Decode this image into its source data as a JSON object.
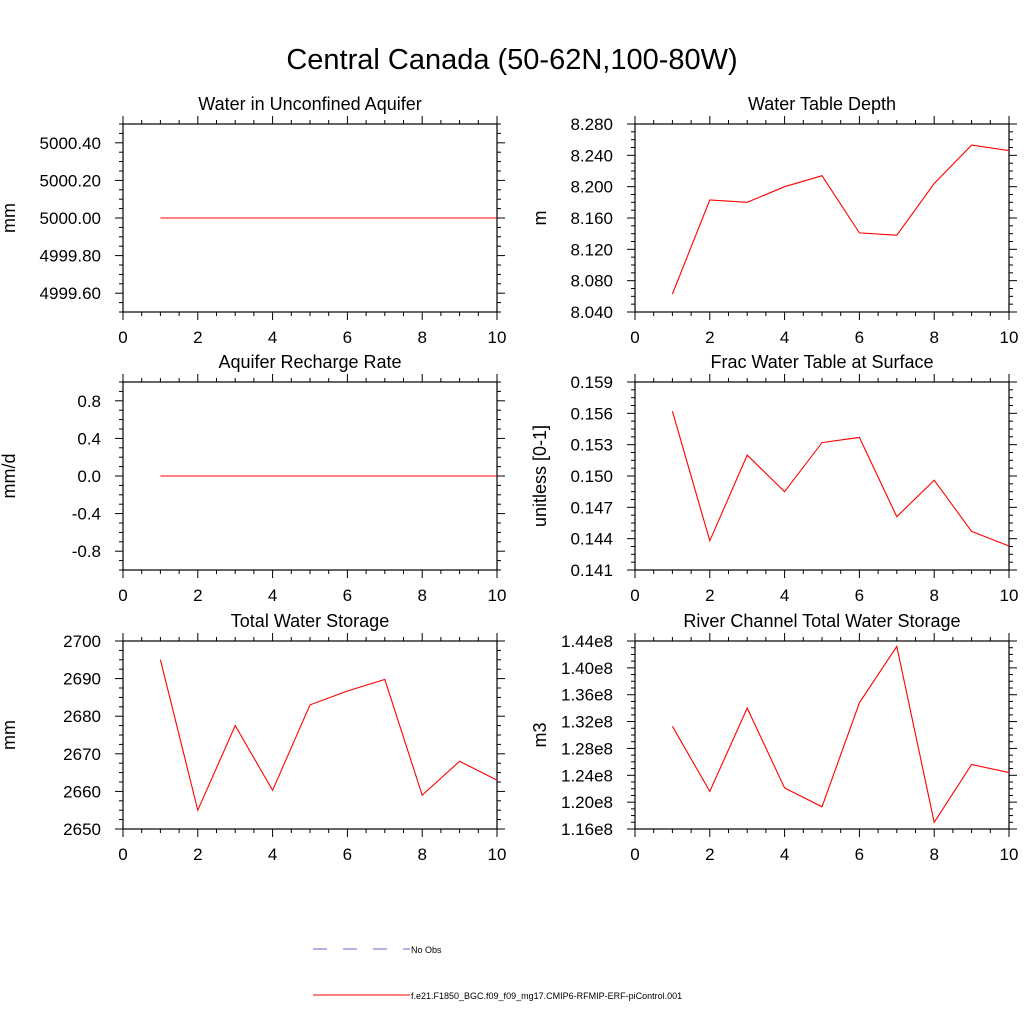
{
  "page": {
    "title": "Central Canada (50-62N,100-80W)"
  },
  "chart_data": [
    {
      "type": "line",
      "title": "Water in Unconfined Aquifer",
      "ylabel": "mm",
      "xlim": [
        0,
        10
      ],
      "ylim": [
        4999.5,
        5000.5
      ],
      "xticks": [
        0,
        2,
        4,
        6,
        8,
        10
      ],
      "yticks": [
        4999.6,
        4999.8,
        5000.0,
        5000.2,
        5000.4
      ],
      "ytick_labels": [
        "4999.60",
        "4999.80",
        "5000.00",
        "5000.20",
        "5000.40"
      ],
      "series": [
        {
          "color": "#ff0000",
          "x": [
            1,
            2,
            3,
            4,
            5,
            6,
            7,
            8,
            9,
            10
          ],
          "values": [
            5000,
            5000,
            5000,
            5000,
            5000,
            5000,
            5000,
            5000,
            5000,
            5000
          ]
        }
      ]
    },
    {
      "type": "line",
      "title": "Water Table Depth",
      "ylabel": "m",
      "xlim": [
        0,
        10
      ],
      "ylim": [
        8.04,
        8.28
      ],
      "xticks": [
        0,
        2,
        4,
        6,
        8,
        10
      ],
      "yticks": [
        8.04,
        8.08,
        8.12,
        8.16,
        8.2,
        8.24,
        8.28
      ],
      "ytick_labels": [
        "8.040",
        "8.080",
        "8.120",
        "8.160",
        "8.200",
        "8.240",
        "8.280"
      ],
      "series": [
        {
          "color": "#ff0000",
          "x": [
            1,
            2,
            3,
            4,
            5,
            6,
            7,
            8,
            9,
            10
          ],
          "values": [
            8.063,
            8.183,
            8.18,
            8.2,
            8.214,
            8.141,
            8.138,
            8.204,
            8.253,
            8.246
          ]
        }
      ]
    },
    {
      "type": "line",
      "title": "Aquifer Recharge Rate",
      "ylabel": "mm/d",
      "xlim": [
        0,
        10
      ],
      "ylim": [
        -1.0,
        1.0
      ],
      "xticks": [
        0,
        2,
        4,
        6,
        8,
        10
      ],
      "yticks": [
        -0.8,
        -0.4,
        0.0,
        0.4,
        0.8
      ],
      "ytick_labels": [
        "-0.8",
        "-0.4",
        "0.0",
        "0.4",
        "0.8"
      ],
      "series": [
        {
          "color": "#ff0000",
          "x": [
            1,
            2,
            3,
            4,
            5,
            6,
            7,
            8,
            9,
            10
          ],
          "values": [
            0,
            0,
            0,
            0,
            0,
            0,
            0,
            0,
            0,
            0
          ]
        }
      ]
    },
    {
      "type": "line",
      "title": "Frac Water Table at Surface",
      "ylabel": "unitless [0-1]",
      "xlim": [
        0,
        10
      ],
      "ylim": [
        0.141,
        0.159
      ],
      "xticks": [
        0,
        2,
        4,
        6,
        8,
        10
      ],
      "yticks": [
        0.141,
        0.144,
        0.147,
        0.15,
        0.153,
        0.156,
        0.159
      ],
      "ytick_labels": [
        "0.141",
        "0.144",
        "0.147",
        "0.150",
        "0.153",
        "0.156",
        "0.159"
      ],
      "series": [
        {
          "color": "#ff0000",
          "x": [
            1,
            2,
            3,
            4,
            5,
            6,
            7,
            8,
            9,
            10
          ],
          "values": [
            0.1562,
            0.1438,
            0.152,
            0.1485,
            0.1532,
            0.1537,
            0.1461,
            0.1496,
            0.1447,
            0.1433
          ]
        }
      ]
    },
    {
      "type": "line",
      "title": "Total Water Storage",
      "ylabel": "mm",
      "xlim": [
        0,
        10
      ],
      "ylim": [
        2650,
        2700
      ],
      "xticks": [
        0,
        2,
        4,
        6,
        8,
        10
      ],
      "yticks": [
        2650,
        2660,
        2670,
        2680,
        2690,
        2700
      ],
      "ytick_labels": [
        "2650",
        "2660",
        "2670",
        "2680",
        "2690",
        "2700"
      ],
      "series": [
        {
          "color": "#ff0000",
          "x": [
            1,
            2,
            3,
            4,
            5,
            6,
            7,
            8,
            9,
            10
          ],
          "values": [
            2695,
            2655,
            2677.5,
            2660.3,
            2683,
            2686.7,
            2689.8,
            2659,
            2668,
            2663
          ]
        }
      ]
    },
    {
      "type": "line",
      "title": "River Channel Total Water Storage",
      "ylabel": "m3",
      "xlim": [
        0,
        10
      ],
      "ylim": [
        116000000.0,
        144000000.0
      ],
      "xticks": [
        0,
        2,
        4,
        6,
        8,
        10
      ],
      "yticks": [
        116000000.0,
        120000000.0,
        124000000.0,
        128000000.0,
        132000000.0,
        136000000.0,
        140000000.0,
        144000000.0
      ],
      "ytick_labels": [
        "1.16e8",
        "1.20e8",
        "1.24e8",
        "1.28e8",
        "1.32e8",
        "1.36e8",
        "1.40e8",
        "1.44e8"
      ],
      "series": [
        {
          "color": "#ff0000",
          "x": [
            1,
            2,
            3,
            4,
            5,
            6,
            7,
            8,
            9,
            10
          ],
          "values": [
            131300000.0,
            121600000.0,
            134000000.0,
            122100000.0,
            119300000.0,
            134800000.0,
            143200000.0,
            117000000.0,
            125600000.0,
            124400000.0
          ]
        }
      ]
    }
  ],
  "legend": {
    "items": [
      {
        "label": "No Obs",
        "color": "#6666cc",
        "style": "dashed"
      },
      {
        "label": "f.e21.F1850_BGC.f09_f09_mg17.CMIP6-RFMIP-ERF-piControl.001",
        "color": "#ff0000",
        "style": "solid"
      }
    ]
  }
}
